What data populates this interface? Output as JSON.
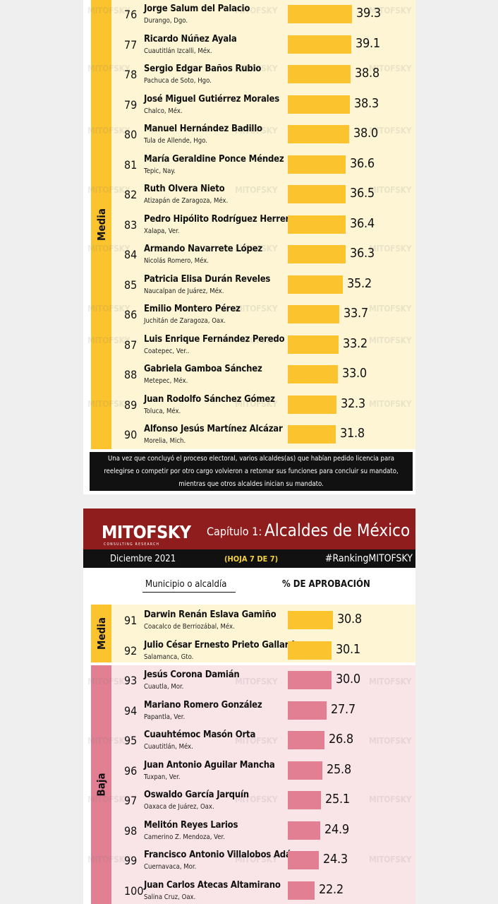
{
  "colors": {
    "media": "#fbc42e",
    "baja": "#e27f93",
    "media_bg": "#fdf5d4",
    "baja_bg": "#f9e4e8",
    "header": "#8f1d1d"
  },
  "watermark": "MITOFSKY",
  "page1": {
    "category_label": "Media",
    "note": "Una vez que concluyó el proceso electoral, varios alcaldes(as) que habían pedido licencia para reelegirse o competir por otro cargo volvieron a retomar sus funciones para concluir su mandato, mientras que otros alcaldes inician su mandato."
  },
  "page2": {
    "brand": "MITOFSKY",
    "brand_sub": "CONSULTING RESEARCH",
    "chapter": "Capítulo 1:",
    "title": "Alcaldes de México",
    "date": "Diciembre 2021",
    "sheet": "(HOJA 7 DE 7)",
    "hashtag": "#RankingMITOFSKY",
    "col_municipio": "Municipio o alcaldía",
    "col_aprobacion": "% DE APROBACIÓN",
    "label_media": "Media",
    "label_baja": "Baja"
  },
  "chart_data": [
    {
      "type": "bar",
      "orientation": "horizontal",
      "xlim": [
        0,
        42
      ],
      "rows": [
        {
          "rank": 76,
          "name": "Jorge Salum del Palacio",
          "city": "Durango, Dgo.",
          "value": 39.3,
          "group": "Media"
        },
        {
          "rank": 77,
          "name": "Ricardo Núñez Ayala",
          "city": "Cuautitlán Izcalli, Méx.",
          "value": 39.1,
          "group": "Media"
        },
        {
          "rank": 78,
          "name": "Sergio Edgar Baños Rubio",
          "city": "Pachuca de Soto, Hgo.",
          "value": 38.8,
          "group": "Media"
        },
        {
          "rank": 79,
          "name": "José Miguel Gutiérrez Morales",
          "city": "Chalco, Méx.",
          "value": 38.3,
          "group": "Media"
        },
        {
          "rank": 80,
          "name": "Manuel Hernández Badillo",
          "city": "Tula de Allende, Hgo.",
          "value": 38.0,
          "group": "Media"
        },
        {
          "rank": 81,
          "name": "María Geraldine Ponce Méndez",
          "city": "Tepic, Nay.",
          "value": 36.6,
          "group": "Media"
        },
        {
          "rank": 82,
          "name": "Ruth Olvera Nieto",
          "city": "Atizapán de Zaragoza, Méx.",
          "value": 36.5,
          "group": "Media"
        },
        {
          "rank": 83,
          "name": "Pedro Hipólito Rodríguez Herrero",
          "city": "Xalapa, Ver.",
          "value": 36.4,
          "group": "Media"
        },
        {
          "rank": 84,
          "name": "Armando Navarrete López",
          "city": "Nicolás Romero, Méx.",
          "value": 36.3,
          "group": "Media"
        },
        {
          "rank": 85,
          "name": "Patricia Elisa Durán Reveles",
          "city": "Naucalpan de Juárez, Méx.",
          "value": 35.2,
          "group": "Media"
        },
        {
          "rank": 86,
          "name": "Emilio Montero Pérez",
          "city": "Juchitán de Zaragoza, Oax.",
          "value": 33.7,
          "group": "Media"
        },
        {
          "rank": 87,
          "name": "Luis Enrique Fernández Peredo",
          "city": "Coatepec, Ver..",
          "value": 33.2,
          "group": "Media"
        },
        {
          "rank": 88,
          "name": "Gabriela Gamboa Sánchez",
          "city": "Metepec, Méx.",
          "value": 33.0,
          "group": "Media"
        },
        {
          "rank": 89,
          "name": "Juan Rodolfo Sánchez Gómez",
          "city": "Toluca, Méx.",
          "value": 32.3,
          "group": "Media"
        },
        {
          "rank": 90,
          "name": "Alfonso Jesús Martínez Alcázar",
          "city": "Morelia, Mich.",
          "value": 31.8,
          "group": "Media"
        }
      ]
    },
    {
      "type": "bar",
      "orientation": "horizontal",
      "xlim": [
        0,
        42
      ],
      "rows": [
        {
          "rank": 91,
          "name": "Darwin Renán Eslava Gamiño",
          "city": "Coacalco de Berriozábal, Méx.",
          "value": 30.8,
          "group": "Media"
        },
        {
          "rank": 92,
          "name": "Julio César Ernesto Prieto Gallardo",
          "city": "Salamanca, Gto.",
          "value": 30.1,
          "group": "Media"
        },
        {
          "rank": 93,
          "name": "Jesús Corona Damián",
          "city": "Cuautla, Mor.",
          "value": 30.0,
          "group": "Baja"
        },
        {
          "rank": 94,
          "name": "Mariano Romero González",
          "city": "Papantla, Ver.",
          "value": 27.7,
          "group": "Baja"
        },
        {
          "rank": 95,
          "name": "Cuauhtémoc Masón Orta",
          "city": "Cuautitlán, Méx.",
          "value": 26.8,
          "group": "Baja"
        },
        {
          "rank": 96,
          "name": "Juan Antonio Aguilar Mancha",
          "city": "Tuxpan, Ver.",
          "value": 25.8,
          "group": "Baja"
        },
        {
          "rank": 97,
          "name": "Oswaldo García Jarquín",
          "city": "Oaxaca de Juárez, Oax.",
          "value": 25.1,
          "group": "Baja"
        },
        {
          "rank": 98,
          "name": "Melitón Reyes Larios",
          "city": "Camerino Z. Mendoza, Ver.",
          "value": 24.9,
          "group": "Baja"
        },
        {
          "rank": 99,
          "name": "Francisco Antonio Villalobos Adán",
          "city": "Cuernavaca, Mor.",
          "value": 24.3,
          "group": "Baja"
        },
        {
          "rank": 100,
          "name": "Juan Carlos Atecas Altamirano",
          "city": "Salina Cruz, Oax.",
          "value": 22.2,
          "group": "Baja"
        }
      ]
    }
  ]
}
